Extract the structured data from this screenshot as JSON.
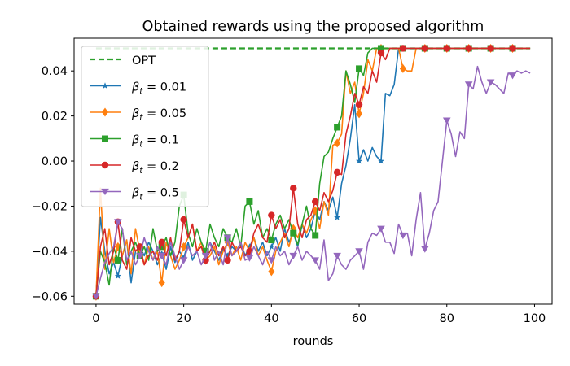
{
  "chart_data": {
    "type": "line",
    "title": "Obtained rewards using the proposed algorithm",
    "xlabel": "rounds",
    "ylabel": "",
    "xlim": [
      -5,
      104
    ],
    "ylim": [
      -0.0635,
      0.0545
    ],
    "xticks": [
      0,
      20,
      40,
      60,
      80,
      100
    ],
    "yticks": [
      -0.06,
      -0.04,
      -0.02,
      0.0,
      0.02,
      0.04
    ],
    "ytick_labels": [
      "−0.06",
      "−0.04",
      "−0.02",
      "0.00",
      "0.02",
      "0.04"
    ],
    "grid": false,
    "legend": {
      "location": "upper-left"
    },
    "reference": {
      "name": "OPT",
      "value": 0.05,
      "x": [
        0,
        99
      ],
      "color": "#2ca02c",
      "style": "dashed"
    },
    "series": [
      {
        "name": "βt = 0.01",
        "legend_base": "β",
        "legend_sub": "t",
        "legend_value": " = 0.01",
        "color": "#1f77b4",
        "marker": "star",
        "x": [
          0,
          1,
          2,
          3,
          4,
          5,
          6,
          7,
          8,
          9,
          10,
          11,
          12,
          13,
          14,
          15,
          16,
          17,
          18,
          19,
          20,
          21,
          22,
          23,
          24,
          25,
          26,
          27,
          28,
          29,
          30,
          31,
          32,
          33,
          34,
          35,
          36,
          37,
          38,
          39,
          40,
          41,
          42,
          43,
          44,
          45,
          46,
          47,
          48,
          49,
          50,
          51,
          52,
          53,
          54,
          55,
          56,
          57,
          58,
          59,
          60,
          61,
          62,
          63,
          64,
          65,
          66,
          67,
          68,
          69,
          70,
          71,
          72,
          73,
          74,
          75,
          76,
          77,
          78,
          79,
          80,
          81,
          82,
          83,
          84,
          85,
          86,
          87,
          88,
          89,
          90,
          91,
          92,
          93,
          94,
          95,
          96,
          97,
          98,
          99
        ],
        "values": [
          -0.06,
          -0.025,
          -0.04,
          -0.05,
          -0.045,
          -0.051,
          -0.042,
          -0.035,
          -0.054,
          -0.04,
          -0.038,
          -0.042,
          -0.036,
          -0.04,
          -0.046,
          -0.041,
          -0.048,
          -0.038,
          -0.045,
          -0.04,
          -0.043,
          -0.036,
          -0.044,
          -0.04,
          -0.038,
          -0.042,
          -0.036,
          -0.04,
          -0.044,
          -0.039,
          -0.042,
          -0.038,
          -0.04,
          -0.036,
          -0.042,
          -0.038,
          -0.034,
          -0.04,
          -0.036,
          -0.042,
          -0.038,
          -0.034,
          -0.04,
          -0.03,
          -0.036,
          -0.032,
          -0.038,
          -0.028,
          -0.034,
          -0.03,
          -0.022,
          -0.026,
          -0.018,
          -0.022,
          -0.016,
          -0.025,
          -0.01,
          -0.002,
          0.01,
          0.025,
          0.0,
          0.005,
          0.0,
          0.006,
          0.002,
          0.0,
          0.03,
          0.029,
          0.034,
          0.05,
          0.05,
          0.05,
          0.05,
          0.05,
          0.05,
          0.05,
          0.05,
          0.05,
          0.05,
          0.05,
          0.05,
          0.05,
          0.05,
          0.05,
          0.05,
          0.05,
          0.05,
          0.05,
          0.05,
          0.05,
          0.05,
          0.05,
          0.05,
          0.05,
          0.05,
          0.05,
          0.05,
          0.05,
          0.05,
          0.05
        ]
      },
      {
        "name": "βt = 0.05",
        "legend_base": "β",
        "legend_sub": "t",
        "legend_value": " = 0.05",
        "color": "#ff7f0e",
        "marker": "diamond",
        "x": [
          0,
          1,
          2,
          3,
          4,
          5,
          6,
          7,
          8,
          9,
          10,
          11,
          12,
          13,
          14,
          15,
          16,
          17,
          18,
          19,
          20,
          21,
          22,
          23,
          24,
          25,
          26,
          27,
          28,
          29,
          30,
          31,
          32,
          33,
          34,
          35,
          36,
          37,
          38,
          39,
          40,
          41,
          42,
          43,
          44,
          45,
          46,
          47,
          48,
          49,
          50,
          51,
          52,
          53,
          54,
          55,
          56,
          57,
          58,
          59,
          60,
          61,
          62,
          63,
          64,
          65,
          66,
          67,
          68,
          69,
          70,
          71,
          72,
          73,
          74,
          75,
          76,
          77,
          78,
          79,
          80,
          81,
          82,
          83,
          84,
          85,
          86,
          87,
          88,
          89,
          90,
          91,
          92,
          93,
          94,
          95,
          96,
          97,
          98,
          99
        ],
        "values": [
          -0.06,
          -0.012,
          -0.048,
          -0.03,
          -0.045,
          -0.038,
          -0.042,
          -0.035,
          -0.05,
          -0.03,
          -0.04,
          -0.046,
          -0.038,
          -0.044,
          -0.04,
          -0.054,
          -0.036,
          -0.042,
          -0.048,
          -0.044,
          -0.038,
          -0.034,
          -0.028,
          -0.04,
          -0.036,
          -0.044,
          -0.042,
          -0.038,
          -0.046,
          -0.04,
          -0.036,
          -0.042,
          -0.038,
          -0.044,
          -0.036,
          -0.04,
          -0.034,
          -0.042,
          -0.038,
          -0.044,
          -0.049,
          -0.04,
          -0.036,
          -0.032,
          -0.038,
          -0.03,
          -0.034,
          -0.028,
          -0.032,
          -0.026,
          -0.022,
          -0.03,
          -0.018,
          -0.024,
          0.007,
          0.008,
          0.012,
          0.04,
          0.03,
          0.035,
          0.021,
          0.03,
          0.045,
          0.04,
          0.05,
          0.05,
          0.05,
          0.05,
          0.05,
          0.05,
          0.041,
          0.04,
          0.04,
          0.05,
          0.05,
          0.05,
          0.05,
          0.05,
          0.05,
          0.05,
          0.05,
          0.05,
          0.05,
          0.05,
          0.05,
          0.05,
          0.05,
          0.05,
          0.05,
          0.05,
          0.05,
          0.05,
          0.05,
          0.05,
          0.05,
          0.05,
          0.05,
          0.05,
          0.05,
          0.05
        ]
      },
      {
        "name": "βt = 0.1",
        "legend_base": "β",
        "legend_sub": "t",
        "legend_value": " = 0.1",
        "color": "#2ca02c",
        "marker": "square",
        "x": [
          0,
          1,
          2,
          3,
          4,
          5,
          6,
          7,
          8,
          9,
          10,
          11,
          12,
          13,
          14,
          15,
          16,
          17,
          18,
          19,
          20,
          21,
          22,
          23,
          24,
          25,
          26,
          27,
          28,
          29,
          30,
          31,
          32,
          33,
          34,
          35,
          36,
          37,
          38,
          39,
          40,
          41,
          42,
          43,
          44,
          45,
          46,
          47,
          48,
          49,
          50,
          51,
          52,
          53,
          54,
          55,
          56,
          57,
          58,
          59,
          60,
          61,
          62,
          63,
          64,
          65,
          66,
          67,
          68,
          69,
          70,
          71,
          72,
          73,
          74,
          75,
          76,
          77,
          78,
          79,
          80,
          81,
          82,
          83,
          84,
          85,
          86,
          87,
          88,
          89,
          90,
          91,
          92,
          93,
          94,
          95,
          96,
          97,
          98,
          99
        ],
        "values": [
          -0.06,
          -0.04,
          -0.045,
          -0.055,
          -0.038,
          -0.044,
          -0.03,
          -0.046,
          -0.04,
          -0.036,
          -0.042,
          -0.038,
          -0.044,
          -0.03,
          -0.04,
          -0.038,
          -0.034,
          -0.042,
          -0.036,
          -0.02,
          -0.015,
          -0.032,
          -0.038,
          -0.03,
          -0.036,
          -0.04,
          -0.028,
          -0.034,
          -0.038,
          -0.03,
          -0.034,
          -0.036,
          -0.03,
          -0.038,
          -0.02,
          -0.018,
          -0.028,
          -0.022,
          -0.034,
          -0.03,
          -0.035,
          -0.028,
          -0.024,
          -0.03,
          -0.026,
          -0.032,
          -0.037,
          -0.028,
          -0.02,
          -0.03,
          -0.033,
          -0.01,
          0.002,
          0.004,
          0.01,
          0.015,
          0.02,
          0.04,
          0.034,
          0.026,
          0.041,
          0.038,
          0.048,
          0.05,
          0.05,
          0.05,
          0.05,
          0.05,
          0.05,
          0.05,
          0.05,
          0.05,
          0.05,
          0.05,
          0.05,
          0.05,
          0.05,
          0.05,
          0.05,
          0.05,
          0.05,
          0.05,
          0.05,
          0.05,
          0.05,
          0.05,
          0.05,
          0.05,
          0.05,
          0.05,
          0.05,
          0.05,
          0.05,
          0.05,
          0.05,
          0.05,
          0.05,
          0.05,
          0.05,
          0.05
        ]
      },
      {
        "name": "βt = 0.2",
        "legend_base": "β",
        "legend_sub": "t",
        "legend_value": " = 0.2",
        "color": "#d62728",
        "marker": "circle",
        "x": [
          0,
          1,
          2,
          3,
          4,
          5,
          6,
          7,
          8,
          9,
          10,
          11,
          12,
          13,
          14,
          15,
          16,
          17,
          18,
          19,
          20,
          21,
          22,
          23,
          24,
          25,
          26,
          27,
          28,
          29,
          30,
          31,
          32,
          33,
          34,
          35,
          36,
          37,
          38,
          39,
          40,
          41,
          42,
          43,
          44,
          45,
          46,
          47,
          48,
          49,
          50,
          51,
          52,
          53,
          54,
          55,
          56,
          57,
          58,
          59,
          60,
          61,
          62,
          63,
          64,
          65,
          66,
          67,
          68,
          69,
          70,
          71,
          72,
          73,
          74,
          75,
          76,
          77,
          78,
          79,
          80,
          81,
          82,
          83,
          84,
          85,
          86,
          87,
          88,
          89,
          90,
          91,
          92,
          93,
          94,
          95,
          96,
          97,
          98,
          99
        ],
        "values": [
          -0.06,
          -0.038,
          -0.03,
          -0.046,
          -0.04,
          -0.027,
          -0.044,
          -0.048,
          -0.034,
          -0.04,
          -0.038,
          -0.046,
          -0.042,
          -0.04,
          -0.044,
          -0.036,
          -0.042,
          -0.034,
          -0.044,
          -0.04,
          -0.026,
          -0.034,
          -0.028,
          -0.04,
          -0.038,
          -0.044,
          -0.04,
          -0.036,
          -0.042,
          -0.038,
          -0.044,
          -0.036,
          -0.04,
          -0.038,
          -0.042,
          -0.04,
          -0.032,
          -0.028,
          -0.034,
          -0.036,
          -0.024,
          -0.03,
          -0.026,
          -0.034,
          -0.03,
          -0.012,
          -0.028,
          -0.034,
          -0.026,
          -0.024,
          -0.018,
          -0.022,
          -0.014,
          -0.018,
          -0.013,
          -0.005,
          -0.006,
          0.012,
          0.02,
          0.03,
          0.025,
          0.033,
          0.03,
          0.04,
          0.035,
          0.048,
          0.045,
          0.05,
          0.05,
          0.05,
          0.05,
          0.05,
          0.05,
          0.05,
          0.05,
          0.05,
          0.05,
          0.05,
          0.05,
          0.05,
          0.05,
          0.05,
          0.05,
          0.05,
          0.05,
          0.05,
          0.05,
          0.05,
          0.05,
          0.05,
          0.05,
          0.05,
          0.05,
          0.05,
          0.05,
          0.05,
          0.05,
          0.05,
          0.05,
          0.05
        ]
      },
      {
        "name": "βt = 0.5",
        "legend_base": "β",
        "legend_sub": "t",
        "legend_value": " = 0.5",
        "color": "#9467bd",
        "marker": "triangle-down",
        "x": [
          0,
          1,
          2,
          3,
          4,
          5,
          6,
          7,
          8,
          9,
          10,
          11,
          12,
          13,
          14,
          15,
          16,
          17,
          18,
          19,
          20,
          21,
          22,
          23,
          24,
          25,
          26,
          27,
          28,
          29,
          30,
          31,
          32,
          33,
          34,
          35,
          36,
          37,
          38,
          39,
          40,
          41,
          42,
          43,
          44,
          45,
          46,
          47,
          48,
          49,
          50,
          51,
          52,
          53,
          54,
          55,
          56,
          57,
          58,
          59,
          60,
          61,
          62,
          63,
          64,
          65,
          66,
          67,
          68,
          69,
          70,
          71,
          72,
          73,
          74,
          75,
          76,
          77,
          78,
          79,
          80,
          81,
          82,
          83,
          84,
          85,
          86,
          87,
          88,
          89,
          90,
          91,
          92,
          93,
          94,
          95,
          96,
          97,
          98,
          99
        ],
        "values": [
          -0.06,
          -0.052,
          -0.045,
          -0.041,
          -0.038,
          -0.027,
          -0.03,
          -0.044,
          -0.04,
          -0.046,
          -0.042,
          -0.034,
          -0.04,
          -0.044,
          -0.038,
          -0.042,
          -0.046,
          -0.036,
          -0.042,
          -0.048,
          -0.044,
          -0.038,
          -0.042,
          -0.04,
          -0.046,
          -0.042,
          -0.036,
          -0.044,
          -0.04,
          -0.046,
          -0.034,
          -0.042,
          -0.04,
          -0.036,
          -0.044,
          -0.043,
          -0.038,
          -0.042,
          -0.046,
          -0.04,
          -0.044,
          -0.038,
          -0.042,
          -0.04,
          -0.046,
          -0.042,
          -0.038,
          -0.044,
          -0.04,
          -0.042,
          -0.044,
          -0.048,
          -0.035,
          -0.053,
          -0.05,
          -0.042,
          -0.046,
          -0.048,
          -0.044,
          -0.042,
          -0.04,
          -0.048,
          -0.036,
          -0.032,
          -0.033,
          -0.03,
          -0.036,
          -0.036,
          -0.041,
          -0.028,
          -0.033,
          -0.032,
          -0.042,
          -0.026,
          -0.014,
          -0.039,
          -0.032,
          -0.022,
          -0.018,
          0.0,
          0.018,
          0.012,
          0.002,
          0.013,
          0.01,
          0.034,
          0.032,
          0.042,
          0.035,
          0.03,
          0.035,
          0.034,
          0.032,
          0.03,
          0.039,
          0.038,
          0.04,
          0.039,
          0.04,
          0.039
        ]
      }
    ]
  }
}
